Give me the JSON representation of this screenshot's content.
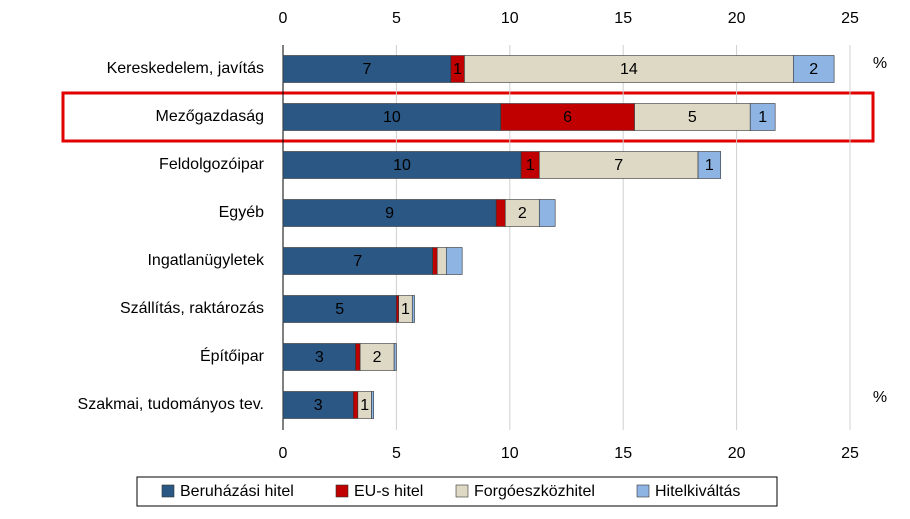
{
  "chart_data": {
    "type": "stacked-barh",
    "categories": [
      "Kereskedelem, javítás",
      "Mezőgazdaság",
      "Feldolgozóipar",
      "Egyéb",
      "Ingatlanügyletek",
      "Szállítás, raktározás",
      "Építőipar",
      "Szakmai, tudományos tev."
    ],
    "series": [
      {
        "name": "Beruházási hitel",
        "color": "#2a5783",
        "values": [
          7.4,
          9.6,
          10.5,
          9.4,
          6.6,
          5.0,
          3.2,
          3.1
        ],
        "value_labels": [
          "7",
          "10",
          "10",
          "9",
          "7",
          "5",
          "3",
          "3"
        ]
      },
      {
        "name": "EU-s hitel",
        "color": "#c00000",
        "values": [
          0.6,
          5.9,
          0.8,
          0.4,
          0.2,
          0.1,
          0.2,
          0.2
        ],
        "value_labels": [
          "1",
          "6",
          "1",
          null,
          null,
          null,
          null,
          null
        ]
      },
      {
        "name": "Forgóeszközhitel",
        "color": "#ddd9c4",
        "values": [
          14.5,
          5.1,
          7.0,
          1.5,
          0.4,
          0.6,
          1.5,
          0.6
        ],
        "value_labels": [
          "14",
          "5",
          "7",
          "2",
          null,
          "1",
          "2",
          "1"
        ]
      },
      {
        "name": "Hitelkiváltás",
        "color": "#8eb4e3",
        "values": [
          1.8,
          1.1,
          1.0,
          0.7,
          0.7,
          0.1,
          0.1,
          0.1
        ],
        "value_labels": [
          "2",
          "1",
          "1",
          null,
          null,
          null,
          null,
          null
        ]
      }
    ],
    "xlim": [
      0,
      25
    ],
    "xticks": [
      0,
      5,
      10,
      15,
      20,
      25
    ],
    "grid": true,
    "unit_labels": [
      "%",
      "%"
    ],
    "legend": "bottom"
  }
}
